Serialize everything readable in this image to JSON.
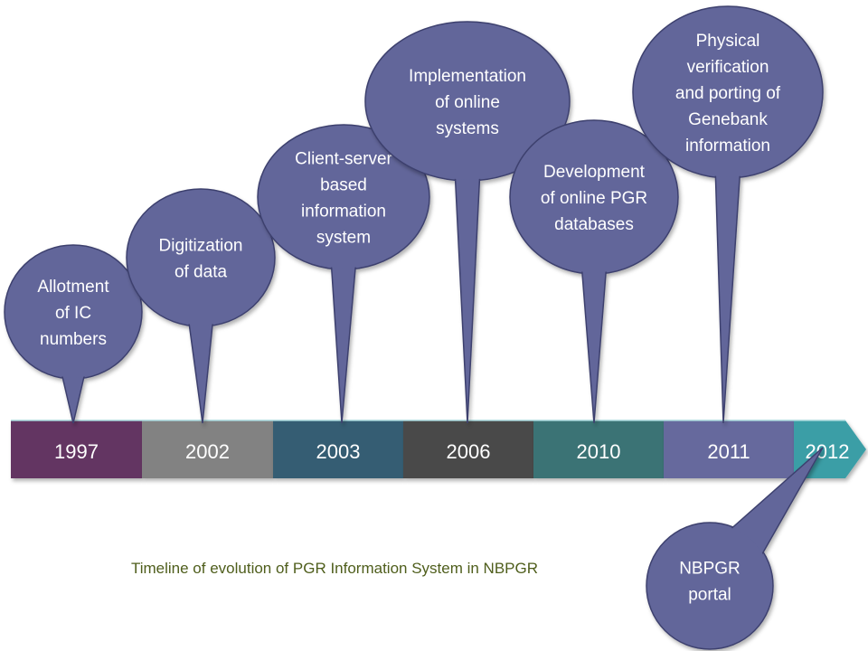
{
  "colors": {
    "bubble_fill": "#62669a",
    "bubble_stroke": "#3d416e",
    "caption": "#4f5e1c"
  },
  "timeline": [
    {
      "year": "1997",
      "color": "#643462"
    },
    {
      "year": "2002",
      "color": "#828282"
    },
    {
      "year": "2003",
      "color": "#355d73"
    },
    {
      "year": "2006",
      "color": "#484848"
    },
    {
      "year": "2010",
      "color": "#3b7375"
    },
    {
      "year": "2011",
      "color": "#66699d"
    },
    {
      "year": "2012",
      "color": "#3a9ea6"
    }
  ],
  "bubbles": [
    {
      "year": "1997",
      "lines": [
        "Allotment",
        "of IC",
        "numbers"
      ]
    },
    {
      "year": "2002",
      "lines": [
        "Digitization",
        "of data"
      ]
    },
    {
      "year": "2003",
      "lines": [
        "Client-server",
        "based",
        "information",
        "system"
      ]
    },
    {
      "year": "2006",
      "lines": [
        "Implementation",
        "of online",
        "systems"
      ]
    },
    {
      "year": "2010",
      "lines": [
        "Development",
        "of online PGR",
        "databases"
      ]
    },
    {
      "year": "2011",
      "lines": [
        "Physical",
        "verification",
        "and porting of",
        "Genebank",
        "information"
      ]
    },
    {
      "year": "2012",
      "lines": [
        "NBPGR",
        "portal"
      ]
    }
  ],
  "caption": "Timeline of evolution of PGR Information System in NBPGR"
}
